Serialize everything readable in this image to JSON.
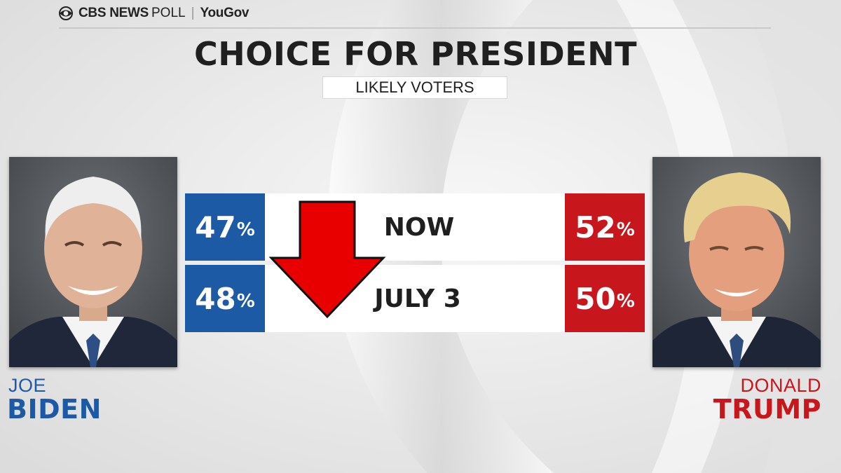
{
  "header": {
    "brand": {
      "news": "CBS NEWS",
      "poll": "POLL",
      "separator": "|",
      "partner": "YouGov"
    }
  },
  "chart_data": {
    "type": "table",
    "title": "CHOICE FOR PRESIDENT",
    "subtitle": "LIKELY VOTERS",
    "rows": [
      {
        "label": "NOW",
        "left_value": 47,
        "right_value": 52
      },
      {
        "label": "JULY 3",
        "left_value": 48,
        "right_value": 50
      }
    ],
    "percent_sign": "%",
    "candidates": {
      "left": {
        "first": "JOE",
        "last": "BIDEN",
        "color": "#1c5aa6"
      },
      "right": {
        "first": "DONALD",
        "last": "TRUMP",
        "color": "#c8161d"
      }
    },
    "annotation": {
      "type": "down-arrow",
      "color": "#e80000"
    }
  }
}
